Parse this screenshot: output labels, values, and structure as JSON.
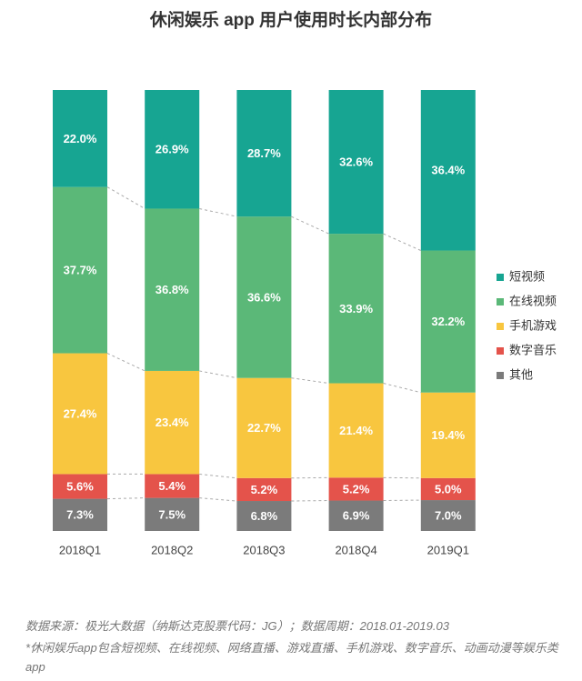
{
  "chart_data": {
    "type": "stacked_bar_percent",
    "title": "休闲娱乐 app 用户使用时长内部分布",
    "categories": [
      "2018Q1",
      "2018Q2",
      "2018Q3",
      "2018Q4",
      "2019Q1"
    ],
    "series": [
      {
        "name": "短视频",
        "color": "#17a592",
        "values": [
          22.0,
          26.9,
          28.7,
          32.6,
          36.4
        ],
        "value_labels": [
          "22.0%",
          "26.9%",
          "28.7%",
          "32.6%",
          "36.4%"
        ]
      },
      {
        "name": "在线视频",
        "color": "#5bb878",
        "values": [
          37.7,
          36.8,
          36.6,
          33.9,
          32.2
        ],
        "value_labels": [
          "37.7%",
          "36.8%",
          "36.6%",
          "33.9%",
          "32.2%"
        ]
      },
      {
        "name": "手机游戏",
        "color": "#f8c63f",
        "values": [
          27.4,
          23.4,
          22.7,
          21.4,
          19.4
        ],
        "value_labels": [
          "27.4%",
          "23.4%",
          "22.7%",
          "21.4%",
          "19.4%"
        ]
      },
      {
        "name": "数字音乐",
        "color": "#e4534b",
        "values": [
          5.6,
          5.4,
          5.2,
          5.2,
          5.0
        ],
        "value_labels": [
          "5.6%",
          "5.4%",
          "5.2%",
          "5.2%",
          "5.0%"
        ]
      },
      {
        "name": "其他",
        "color": "#7b7b7b",
        "values": [
          7.3,
          7.5,
          6.8,
          6.9,
          7.0
        ],
        "value_labels": [
          "7.3%",
          "7.5%",
          "6.8%",
          "6.9%",
          "7.0%"
        ]
      }
    ],
    "source": "数据来源：极光大数据（纳斯达克股票代码：JG）；数据周期：2018.01-2019.03",
    "note": "*休闲娱乐app包含短视频、在线视频、网络直播、游戏直播、手机游戏、数字音乐、动画动漫等娱乐类app"
  }
}
